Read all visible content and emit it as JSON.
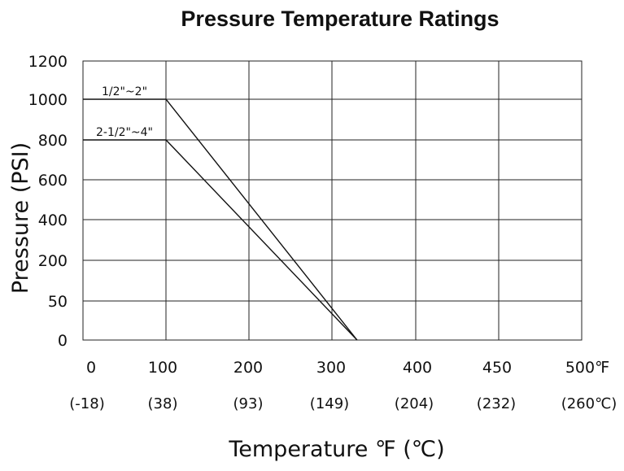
{
  "chart_data": {
    "type": "line",
    "title": "Pressure Temperature Ratings",
    "xlabel": "Temperature ℉ (℃)",
    "ylabel": "Pressure (PSI)",
    "x_ticks": [
      "0",
      "100",
      "200",
      "300",
      "400",
      "450",
      "500℉"
    ],
    "x_ticks_celsius": [
      "(-18)",
      "(38)",
      "(93)",
      "(149)",
      "(204)",
      "(232)",
      "(260℃)"
    ],
    "y_ticks": [
      "0",
      "50",
      "200",
      "400",
      "600",
      "800",
      "1000",
      "1200"
    ],
    "grid": true,
    "series": [
      {
        "name": "1/2\"~2\"",
        "x": [
          0,
          100,
          330
        ],
        "y": [
          1000,
          1000,
          0
        ]
      },
      {
        "name": "2-1/2\"~4\"",
        "x": [
          0,
          100,
          330
        ],
        "y": [
          800,
          800,
          0
        ]
      }
    ]
  }
}
